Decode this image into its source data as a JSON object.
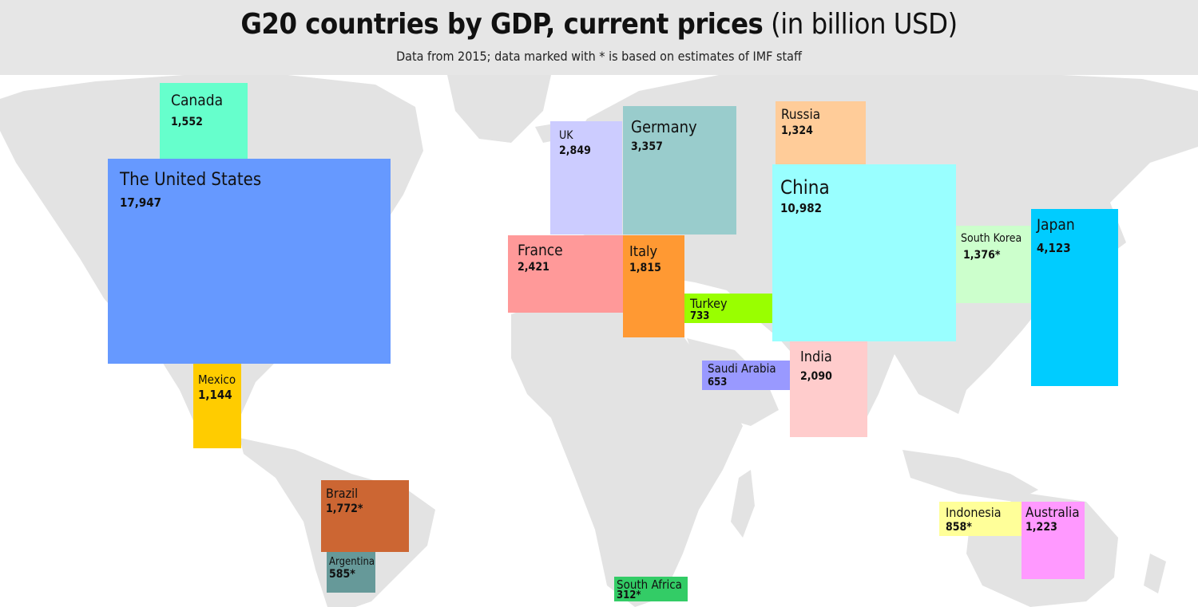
{
  "header": {
    "title_bold": "G20 countries by GDP, current prices",
    "title_unit": "(in billion USD)",
    "subtitle": "Data from 2015; data marked with * is based on estimates of IMF staff"
  },
  "colors": {
    "header_bg": "#e6e6e6",
    "land": "#e3e3e3"
  },
  "chart_data": {
    "type": "table",
    "title": "G20 countries by GDP, current prices (in billion USD)",
    "subtitle": "Data from 2015; data marked with * is based on estimates of IMF staff",
    "unit": "billion USD",
    "countries": [
      {
        "name": "The United States",
        "value": 17947,
        "label": "17,947",
        "estimate": false,
        "color": "#6699ff"
      },
      {
        "name": "China",
        "value": 10982,
        "label": "10,982",
        "estimate": false,
        "color": "#99ffff"
      },
      {
        "name": "Japan",
        "value": 4123,
        "label": "4,123",
        "estimate": false,
        "color": "#00ccff"
      },
      {
        "name": "Germany",
        "value": 3357,
        "label": "3,357",
        "estimate": false,
        "color": "#99cccc"
      },
      {
        "name": "UK",
        "value": 2849,
        "label": "2,849",
        "estimate": false,
        "color": "#ccccff"
      },
      {
        "name": "France",
        "value": 2421,
        "label": "2,421",
        "estimate": false,
        "color": "#ff9999"
      },
      {
        "name": "India",
        "value": 2090,
        "label": "2,090",
        "estimate": false,
        "color": "#ffcccc"
      },
      {
        "name": "Italy",
        "value": 1815,
        "label": "1,815",
        "estimate": false,
        "color": "#ff9933"
      },
      {
        "name": "Brazil",
        "value": 1772,
        "label": "1,772*",
        "estimate": true,
        "color": "#cc6633"
      },
      {
        "name": "Canada",
        "value": 1552,
        "label": "1,552",
        "estimate": false,
        "color": "#66ffcc"
      },
      {
        "name": "South Korea",
        "value": 1376,
        "label": "1,376*",
        "estimate": true,
        "color": "#ccffcc"
      },
      {
        "name": "Russia",
        "value": 1324,
        "label": "1,324",
        "estimate": false,
        "color": "#ffcc99"
      },
      {
        "name": "Australia",
        "value": 1223,
        "label": "1,223",
        "estimate": false,
        "color": "#ff99ff"
      },
      {
        "name": "Mexico",
        "value": 1144,
        "label": "1,144",
        "estimate": false,
        "color": "#ffcc00"
      },
      {
        "name": "Indonesia",
        "value": 858,
        "label": "858*",
        "estimate": true,
        "color": "#ffff99"
      },
      {
        "name": "Turkey",
        "value": 733,
        "label": "733",
        "estimate": false,
        "color": "#99ff00"
      },
      {
        "name": "Saudi Arabia",
        "value": 653,
        "label": "653",
        "estimate": false,
        "color": "#9999ff"
      },
      {
        "name": "Argentina",
        "value": 585,
        "label": "585*",
        "estimate": true,
        "color": "#669999"
      },
      {
        "name": "South Africa",
        "value": 312,
        "label": "312*",
        "estimate": true,
        "color": "#33cc66"
      }
    ]
  }
}
